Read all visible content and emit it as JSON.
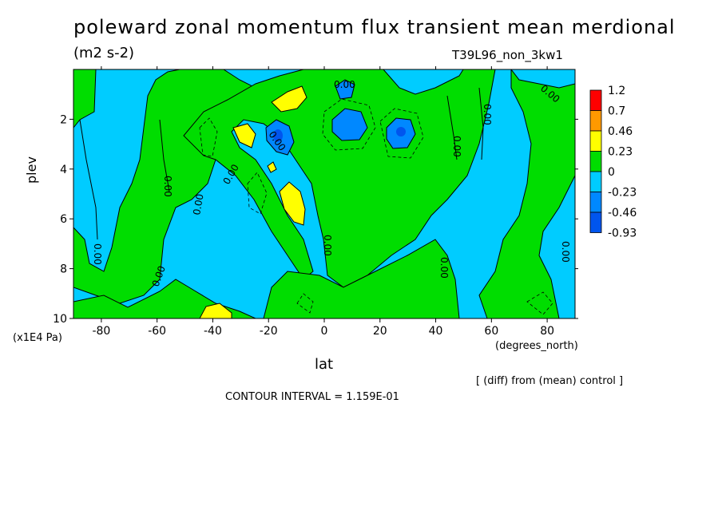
{
  "chart_data": {
    "type": "heatmap",
    "title": "poleward zonal momentum flux transient mean merdional",
    "units": "(m2 s-2)",
    "run_id": "T39L96_non_3kw1",
    "xlabel": "lat",
    "x_units": "(degrees_north)",
    "ylabel": "plev",
    "y_units": "(x1E4 Pa)",
    "xlim": [
      -90,
      90
    ],
    "ylim": [
      10,
      0
    ],
    "x_ticks": [
      -80,
      -60,
      -40,
      -20,
      0,
      20,
      40,
      60,
      80
    ],
    "y_ticks": [
      2,
      4,
      6,
      8,
      10
    ],
    "diff_note": "[ (diff) from (mean) control ]",
    "contour_interval_text": "CONTOUR INTERVAL = 1.159E-01",
    "contour_label": "0.00",
    "colorbar": {
      "levels": [
        "1.2",
        "0.7",
        "0.46",
        "0.23",
        "0",
        "-0.23",
        "-0.46",
        "-0.93"
      ],
      "colors": [
        "#ff0000",
        "#ff9900",
        "#ffff00",
        "#00dd00",
        "#00ccff",
        "#0088ff",
        "#0055ee"
      ]
    },
    "features": [
      {
        "type": "positive",
        "lat": -15,
        "plev": 1.3,
        "value": 0.46
      },
      {
        "type": "positive",
        "lat": -28,
        "plev": 2.7,
        "value": 0.46
      },
      {
        "type": "positive",
        "lat": -11,
        "plev": 5.1,
        "value": 0.46
      },
      {
        "type": "positive",
        "lat": -40,
        "plev": 9.9,
        "value": 0.46
      },
      {
        "type": "negative",
        "lat": -17,
        "plev": 2.8,
        "value": -0.46
      },
      {
        "type": "negative",
        "lat": 7,
        "plev": 2.2,
        "value": -0.46
      },
      {
        "type": "negative",
        "lat": 27,
        "plev": 2.6,
        "value": -0.46
      },
      {
        "type": "negative",
        "lat": 6,
        "plev": 0.9,
        "value": -0.46
      }
    ]
  }
}
